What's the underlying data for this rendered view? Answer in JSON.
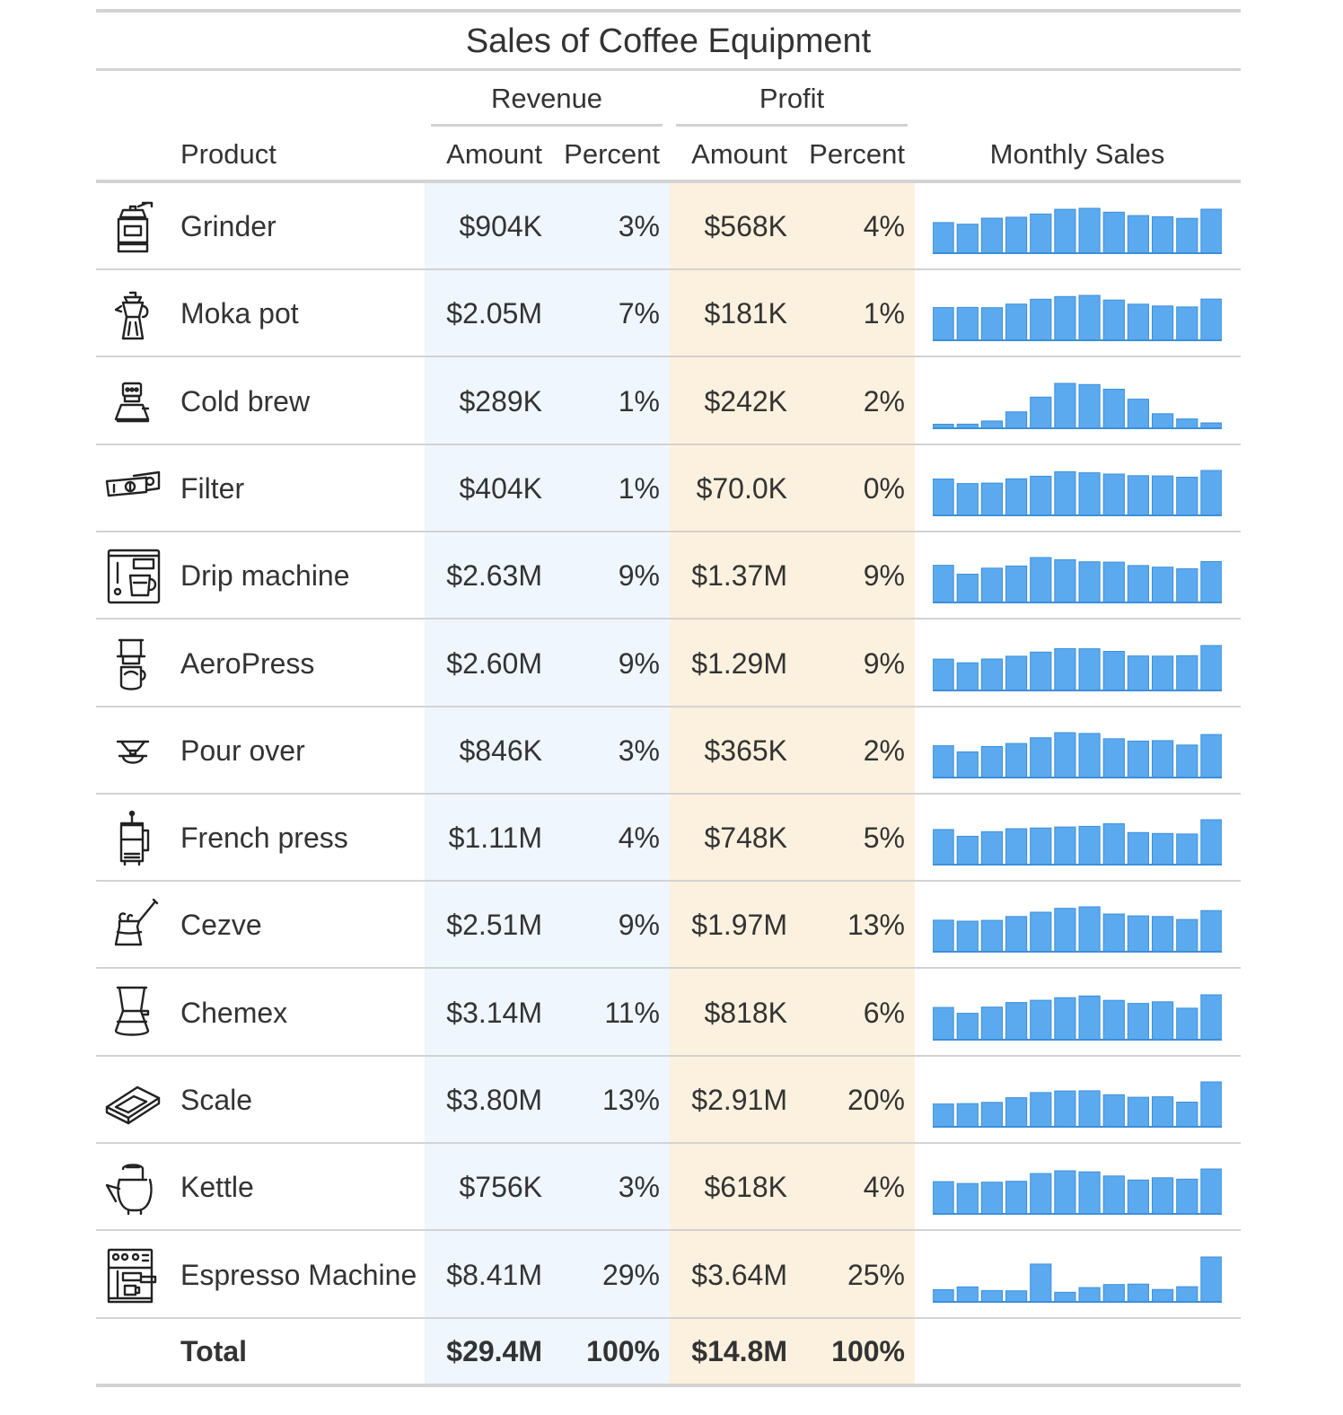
{
  "table": {
    "title": "Sales of Coffee Equipment",
    "spanners": {
      "revenue": "Revenue",
      "profit": "Profit"
    },
    "columns": {
      "product": "Product",
      "rev_amount": "Amount",
      "rev_percent": "Percent",
      "prof_amount": "Amount",
      "prof_percent": "Percent",
      "monthly": "Monthly Sales"
    },
    "colors": {
      "revenue_band": "#EFF6FE",
      "profit_band": "#FCF1DE",
      "bar": "#5BAAF0",
      "bar_edge": "#3E8FD8",
      "rule": "#D3D3D3"
    },
    "rows": [
      {
        "icon": "grinder-icon",
        "product": "Grinder",
        "rev_amount": "$904K",
        "rev_percent": "3%",
        "prof_amount": "$568K",
        "prof_percent": "4%",
        "monthly": [
          521,
          494,
          596,
          613,
          667,
          748,
          765,
          699,
          641,
          621,
          594,
          749
        ]
      },
      {
        "icon": "moka-pot-icon",
        "product": "Moka pot",
        "rev_amount": "$2.05M",
        "rev_percent": "7%",
        "prof_amount": "$181K",
        "prof_percent": "1%",
        "monthly": [
          4726,
          4741,
          4709,
          5227,
          5930,
          6309,
          6483,
          5815,
          5218,
          4958,
          4816,
          5950
        ]
      },
      {
        "icon": "cold-brew-icon",
        "product": "Cold brew",
        "rev_amount": "$289K",
        "rev_percent": "1%",
        "prof_amount": "$242K",
        "prof_percent": "2%",
        "monthly": [
          244,
          249,
          439,
          997,
          1886,
          2720,
          2651,
          2366,
          1765,
          883,
          566,
          324
        ]
      },
      {
        "icon": "filter-icon",
        "product": "Filter",
        "rev_amount": "$404K",
        "rev_percent": "1%",
        "prof_amount": "$70.0K",
        "prof_percent": "0%",
        "monthly": [
          2067,
          1809,
          1836,
          2081,
          2225,
          2480,
          2420,
          2349,
          2257,
          2244,
          2169,
          2554
        ]
      },
      {
        "icon": "drip-machine-icon",
        "product": "Drip machine",
        "rev_amount": "$2.63M",
        "rev_percent": "9%",
        "prof_amount": "$1.37M",
        "prof_percent": "9%",
        "monthly": [
          2137,
          1623,
          1971,
          2097,
          2580,
          2456,
          2336,
          2316,
          2122,
          2028,
          1933,
          2350
        ]
      },
      {
        "icon": "aeropress-icon",
        "product": "AeroPress",
        "rev_amount": "$2.60M",
        "rev_percent": "9%",
        "prof_amount": "$1.29M",
        "prof_percent": "9%",
        "monthly": [
          6333,
          5591,
          6346,
          6910,
          7758,
          8463,
          8425,
          7906,
          6967,
          6926,
          7034,
          9077
        ]
      },
      {
        "icon": "pour-over-icon",
        "product": "Pour over",
        "rev_amount": "$846K",
        "rev_percent": "3%",
        "prof_amount": "$365K",
        "prof_percent": "2%",
        "monthly": [
          1915,
          1547,
          1866,
          2050,
          2394,
          2701,
          2653,
          2335,
          2193,
          2218,
          1954,
          2588
        ]
      },
      {
        "icon": "french-press-icon",
        "product": "French press",
        "rev_amount": "$1.11M",
        "rev_percent": "4%",
        "prof_amount": "$748K",
        "prof_percent": "5%",
        "monthly": [
          3235,
          2611,
          3029,
          3302,
          3373,
          3465,
          3519,
          3757,
          2954,
          2868,
          2817,
          4132
        ]
      },
      {
        "icon": "cezve-icon",
        "product": "Cezve",
        "rev_amount": "$2.51M",
        "rev_percent": "9%",
        "prof_amount": "$1.97M",
        "prof_percent": "13%",
        "monthly": [
          4328,
          4194,
          4310,
          4839,
          5433,
          5961,
          6173,
          5181,
          4932,
          4843,
          4430,
          5658
        ]
      },
      {
        "icon": "chemex-icon",
        "product": "Chemex",
        "rev_amount": "$3.14M",
        "rev_percent": "11%",
        "prof_amount": "$818K",
        "prof_percent": "6%",
        "monthly": [
          3670,
          3009,
          3706,
          4228,
          4491,
          4785,
          4979,
          4477,
          4125,
          4315,
          3585,
          5110
        ]
      },
      {
        "icon": "scale-icon",
        "product": "Scale",
        "rev_amount": "$3.80M",
        "rev_percent": "13%",
        "prof_amount": "$2.91M",
        "prof_percent": "20%",
        "monthly": [
          3417,
          3465,
          3652,
          4353,
          5120,
          5361,
          5390,
          4803,
          4429,
          4493,
          3702,
          6721
        ]
      },
      {
        "icon": "kettle-icon",
        "product": "Kettle",
        "rev_amount": "$756K",
        "rev_percent": "3%",
        "prof_amount": "$618K",
        "prof_percent": "4%",
        "monthly": [
          2736,
          2578,
          2695,
          2769,
          3425,
          3660,
          3572,
          3222,
          2878,
          3069,
          2953,
          3814
        ]
      },
      {
        "icon": "espresso-machine-icon",
        "product": "Espresso Machine",
        "rev_amount": "$8.41M",
        "rev_percent": "29%",
        "prof_amount": "$3.64M",
        "prof_percent": "25%",
        "monthly": [
          2274,
          2786,
          2115,
          2051,
          7048,
          1794,
          2658,
          3228,
          3310,
          2312,
          2824,
          8364
        ]
      }
    ],
    "total": {
      "label": "Total",
      "rev_amount": "$29.4M",
      "rev_percent": "100%",
      "prof_amount": "$14.8M",
      "prof_percent": "100%"
    }
  }
}
